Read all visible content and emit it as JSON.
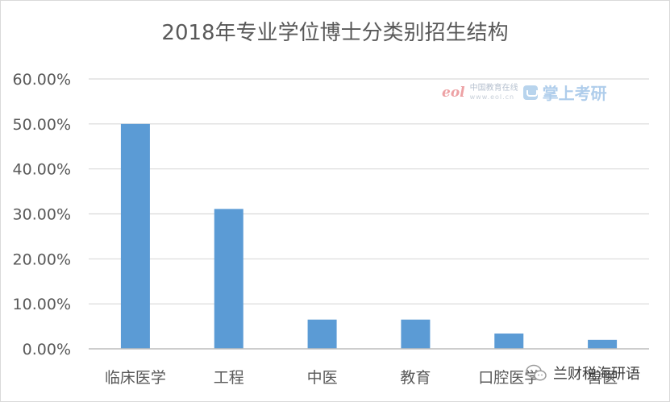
{
  "chart_data": {
    "type": "bar",
    "title": "2018年专业学位博士分类别招生结构",
    "categories": [
      "临床医学",
      "工程",
      "中医",
      "教育",
      "口腔医学",
      "兽医"
    ],
    "values": [
      50.0,
      31.1,
      6.5,
      6.5,
      3.4,
      2.0
    ],
    "ylim": [
      0,
      60
    ],
    "yticks": [
      0,
      10,
      20,
      30,
      40,
      50,
      60
    ],
    "ytick_labels": [
      "0.00%",
      "10.00%",
      "20.00%",
      "30.00%",
      "40.00%",
      "50.00%",
      "60.00%"
    ],
    "xlabel": "",
    "ylabel": "",
    "grid": true,
    "bar_color": "#5b9bd5",
    "grid_color": "#d9d9d9",
    "text_color": "#595959"
  },
  "watermark": {
    "eol_logo": "eol",
    "site_name": "中国教育在线",
    "site_url": "www.eol.cn",
    "brand_icon": "graduation-cap-icon",
    "brand_name": "掌上考研"
  },
  "wechat_tag": {
    "icon": "wechat-icon",
    "name": "兰财税海研语"
  }
}
